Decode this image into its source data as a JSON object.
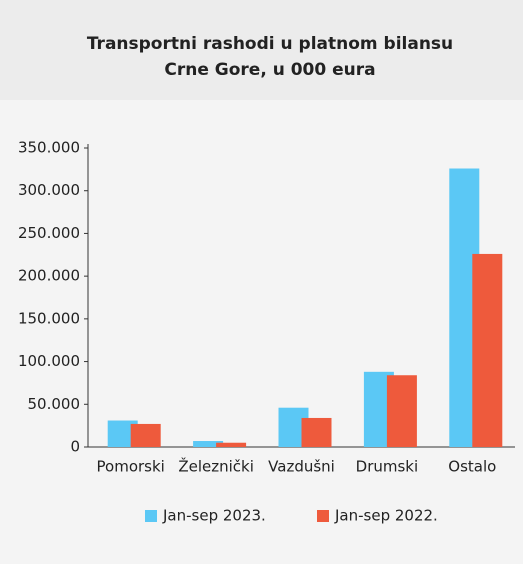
{
  "chart_data": {
    "type": "bar",
    "title": [
      "Transportni rashodi u platnom bilansu",
      "Crne Gore, u 000 eura"
    ],
    "categories": [
      "Pomorski",
      "Železnički",
      "Vazdušni",
      "Drumski",
      "Ostalo"
    ],
    "series": [
      {
        "name": "Jan-sep 2023.",
        "color": "#5bc8f5",
        "values": [
          31000,
          7000,
          46000,
          88000,
          326000
        ]
      },
      {
        "name": "Jan-sep 2022.",
        "color": "#ee5a3c",
        "values": [
          27000,
          5000,
          34000,
          84000,
          226000
        ]
      }
    ],
    "ylim": [
      0,
      350000
    ],
    "yticks": [
      0,
      {
        "value": 50000,
        "label": "50.000"
      },
      {
        "value": 100000,
        "label": "100.000"
      },
      {
        "value": 150000,
        "label": "150.000"
      },
      {
        "value": 200000,
        "label": "200.000"
      },
      {
        "value": 250000,
        "label": "250.000"
      },
      {
        "value": 300000,
        "label": "300.000"
      },
      {
        "value": 350000,
        "label": "350.000"
      }
    ],
    "legend": "bottom"
  }
}
